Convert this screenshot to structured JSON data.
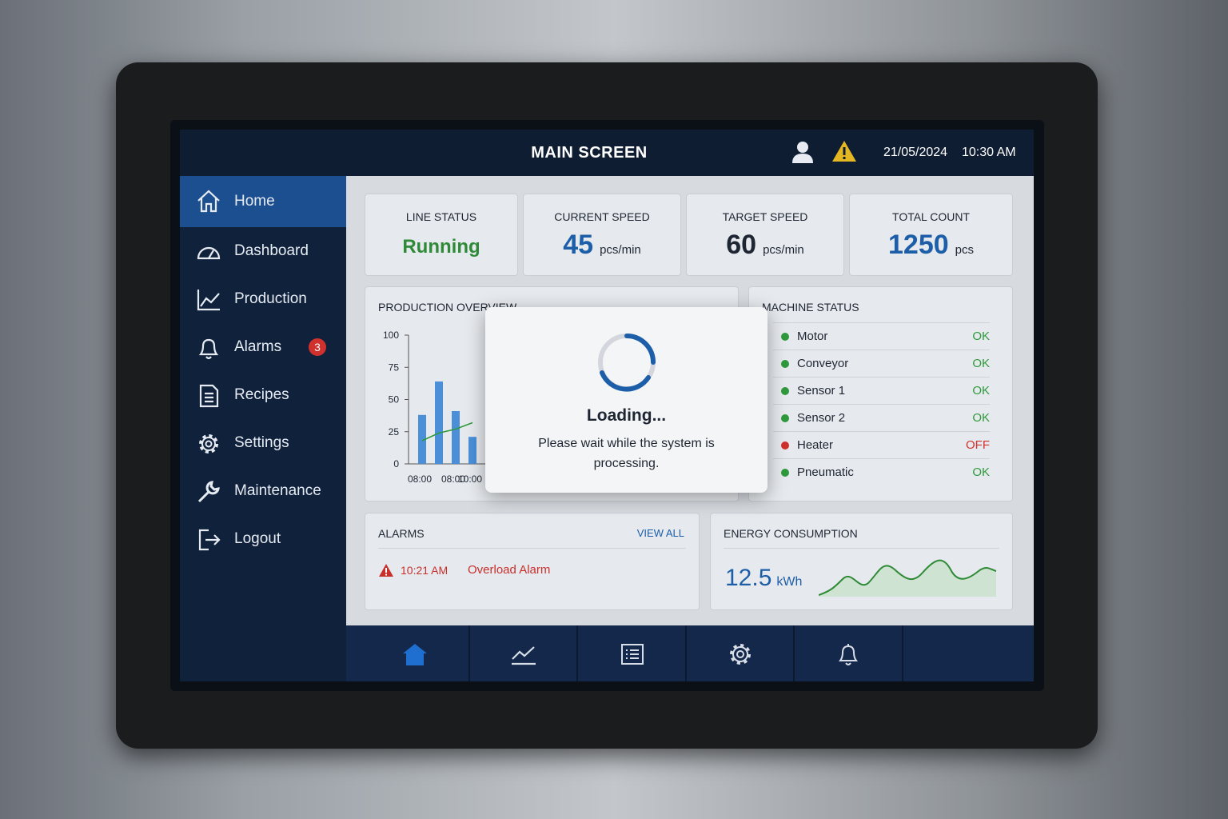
{
  "header": {
    "title": "MAIN SCREEN",
    "date": "21/05/2024",
    "time": "10:30 AM"
  },
  "sidebar": {
    "items": [
      {
        "label": "Home"
      },
      {
        "label": "Dashboard"
      },
      {
        "label": "Production"
      },
      {
        "label": "Alarms",
        "badge": 3
      },
      {
        "label": "Recipes"
      },
      {
        "label": "Settings"
      },
      {
        "label": "Maintenance"
      },
      {
        "label": "Logout"
      }
    ]
  },
  "kpis": [
    {
      "label": "LINE STATUS",
      "value": "Running"
    },
    {
      "label": "CURRENT SPEED",
      "value": 45,
      "unit": "pcs/min"
    },
    {
      "label": "TARGET SPEED",
      "value": 60,
      "unit": "pcs/min"
    },
    {
      "label": "TOTAL COUNT",
      "value": 1250,
      "unit": "pcs"
    }
  ],
  "production_overview": {
    "chart_data": {
      "type": "bar",
      "title": "PRODUCTION OVERVIEW",
      "categories": [
        "08:00",
        null,
        "08:00",
        "10:00"
      ],
      "series": [
        {
          "type": "bar",
          "color": "#4a8fd8",
          "values": [
            38,
            64,
            41,
            21
          ]
        },
        {
          "type": "line",
          "color": "#2e9a3c",
          "values": [
            18,
            24,
            27,
            32
          ]
        }
      ],
      "ylim": [
        0,
        100
      ],
      "yticks": [
        0,
        25,
        50,
        75,
        100
      ]
    }
  },
  "machine_status": {
    "title": "MACHINE STATUS",
    "rows": [
      {
        "name": "Motor",
        "status": "OK",
        "color": "#2e9a3c"
      },
      {
        "name": "Conveyor",
        "status": "OK",
        "color": "#2e9a3c"
      },
      {
        "name": "Sensor 1",
        "status": "OK",
        "color": "#2e9a3c"
      },
      {
        "name": "Sensor 2",
        "status": "OK",
        "color": "#2e9a3c"
      },
      {
        "name": "Heater",
        "status": "OFF",
        "color": "#d0312d"
      },
      {
        "name": "Pneumatic",
        "status": "OK",
        "color": "#2e9a3c"
      }
    ]
  },
  "alarms": {
    "title": "ALARMS",
    "link": "VIEW ALL",
    "items": [
      {
        "time": "10:21 AM",
        "message": "Overload Alarm"
      }
    ]
  },
  "energy": {
    "title": "ENERGY CONSUMPTION",
    "value": 12.5,
    "unit": "kWh"
  },
  "modal": {
    "title": "Loading...",
    "message": "Please wait while the system is processing."
  }
}
